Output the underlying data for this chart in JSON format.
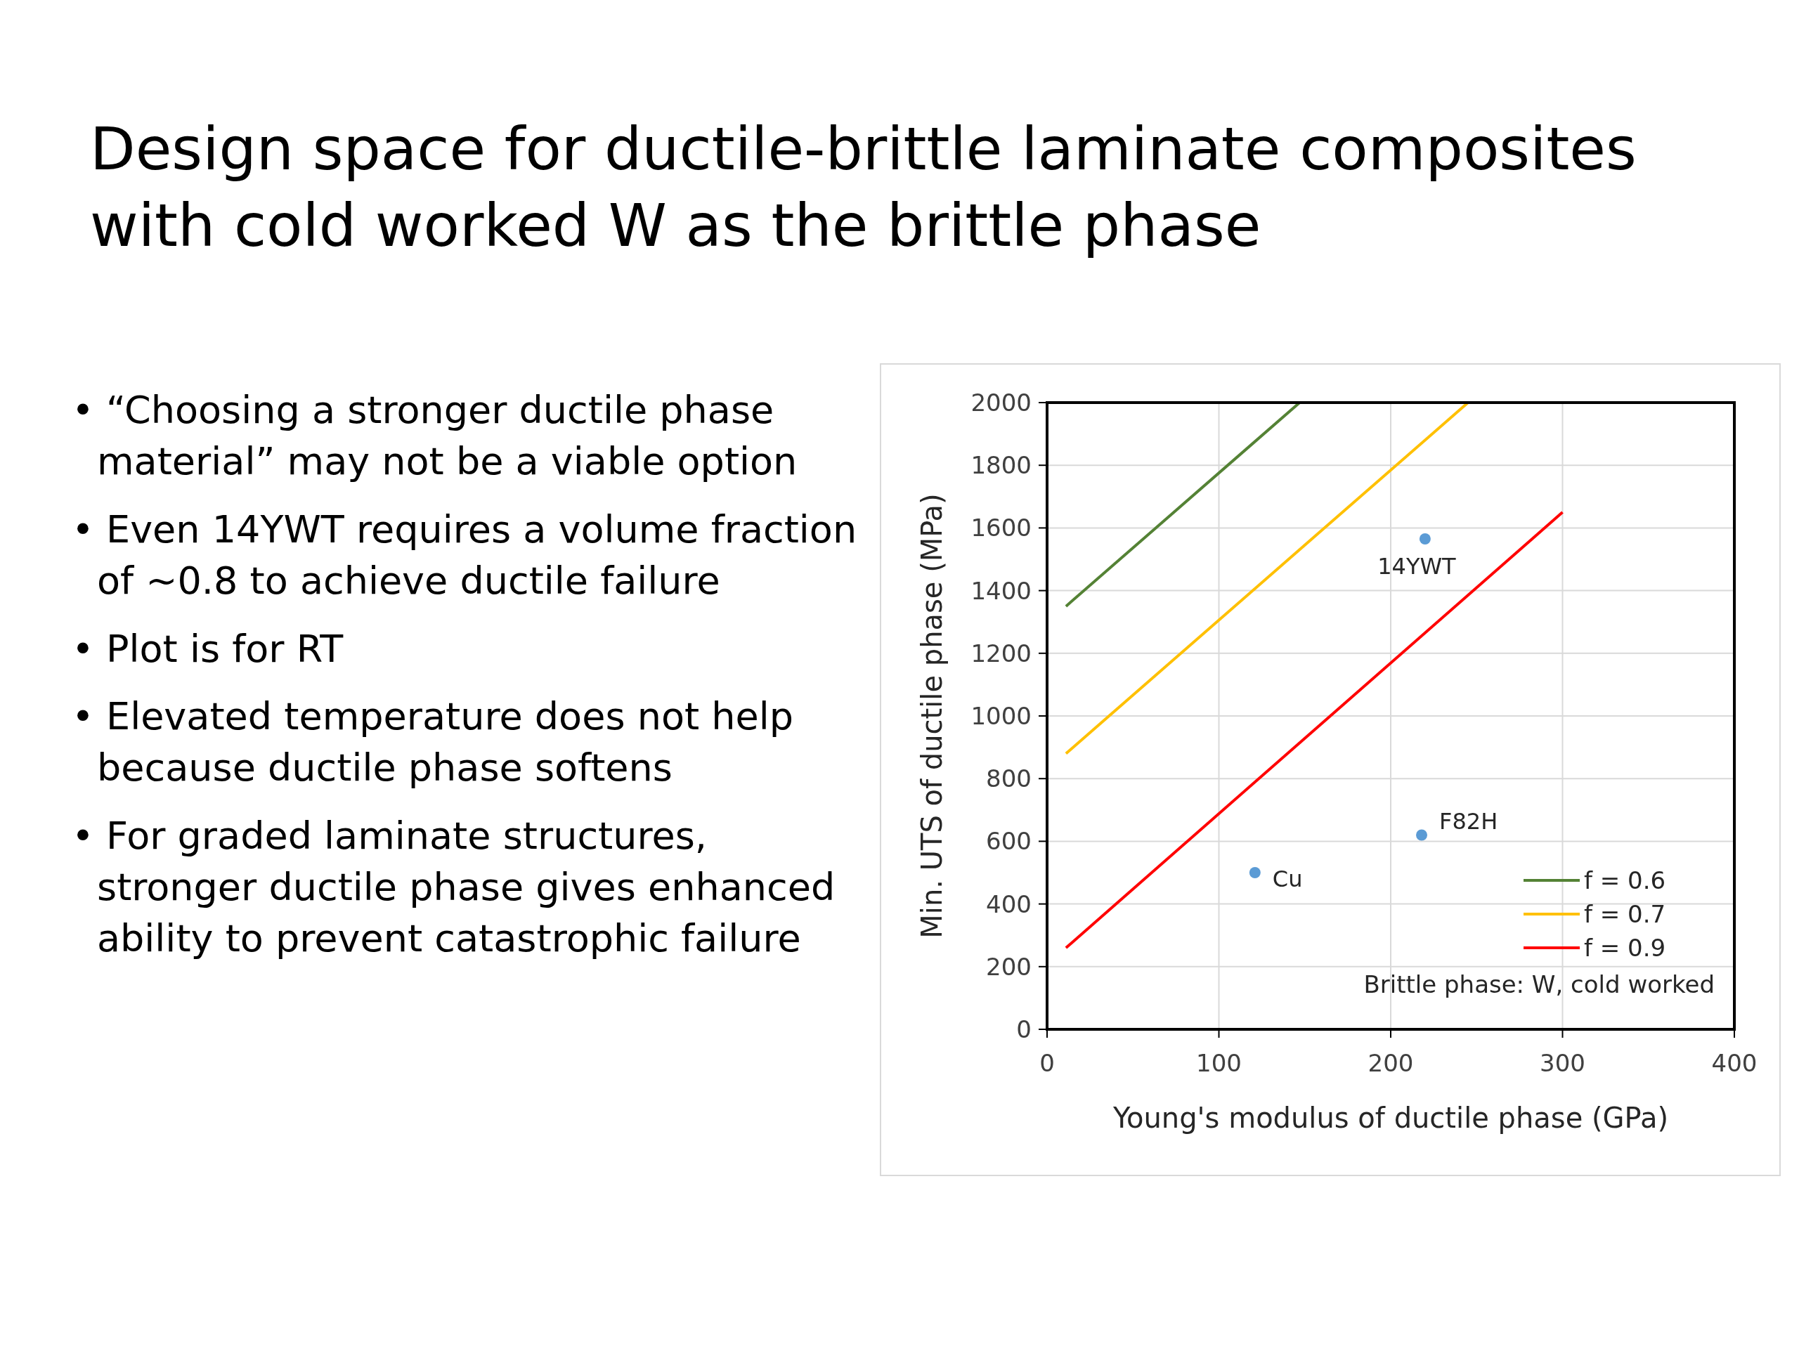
{
  "chart_data": {
    "type": "line",
    "title": "Design space for ductile-brittle laminate composites with cold worked W as the brittle phase",
    "xlabel": "Young's modulus of ductile phase (GPa)",
    "ylabel": "Min. UTS of ductile phase (MPa)",
    "xlim": [
      0,
      400
    ],
    "xticks": [
      0,
      100,
      200,
      300,
      400
    ],
    "ylim": [
      0,
      2000
    ],
    "yticks": [
      0,
      200,
      400,
      600,
      800,
      1000,
      1200,
      1400,
      1600,
      1800,
      2000
    ],
    "grid": true,
    "legend": "right",
    "marker": "none",
    "line_style": "solid",
    "series": [
      {
        "name": "f = 0.6",
        "color": "#548235",
        "x": [
          11,
          147
        ],
        "values": [
          1350,
          2000
        ]
      },
      {
        "name": "f = 0.7",
        "color": "#ffc000",
        "x": [
          11,
          245
        ],
        "values": [
          880,
          2000
        ]
      },
      {
        "name": "f = 0.9",
        "color": "#ff0000",
        "x": [
          11,
          300
        ],
        "values": [
          260,
          1650
        ]
      },
      {
        "type": "scatter",
        "color": "#5b9bd5",
        "marker": "circle",
        "x": [
          121,
          218,
          220
        ],
        "values": [
          500,
          620,
          1565
        ]
      }
    ],
    "annotations": [
      "• “Choosing a stronger ductile phase material” may not be a viable option",
      "• Even 14YWT requires a volume fraction of ~0.8 to achieve ductile failure",
      "• Plot is for RT",
      "• Elevated temperature does not help because ductile phase softens",
      "• For graded laminate structures, stronger ductile phase gives enhanced ability to prevent catastrophic failure",
      "Brittle phase: W, cold worked",
      {
        "text": "Cu",
        "x": 121,
        "y": 500
      },
      {
        "text": "F82H",
        "x": 218,
        "y": 620
      },
      {
        "text": "14YWT",
        "x": 220,
        "y": 1565
      }
    ]
  }
}
